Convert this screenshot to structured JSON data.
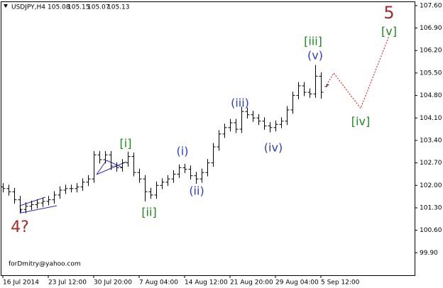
{
  "chart_data": {
    "type": "ohlc",
    "symbol": "USDJPY,H4",
    "quote": [
      105.08,
      105.15,
      105.07,
      105.13
    ],
    "watermark": "forDmitry@yahoo.com",
    "color": "#000000",
    "open": [
      101.95,
      101.9,
      101.8,
      101.55,
      101.25,
      101.35,
      101.4,
      101.45,
      101.5,
      101.55,
      101.7,
      101.85,
      101.9,
      101.9,
      101.95,
      102.1,
      102.2,
      102.95,
      102.8,
      102.95,
      102.6,
      102.55,
      102.7,
      102.9,
      102.4,
      102.2,
      101.8,
      101.7,
      102.0,
      102.1,
      102.2,
      102.35,
      102.55,
      102.5,
      102.3,
      102.2,
      102.4,
      102.7,
      103.2,
      103.6,
      103.8,
      103.95,
      103.75,
      104.3,
      104.2,
      104.1,
      104.0,
      103.85,
      103.8,
      103.9,
      104.0,
      104.35,
      104.8,
      105.1,
      104.9,
      104.85,
      105.4,
      105.08
    ],
    "high": [
      102.07,
      102.02,
      101.92,
      101.67,
      101.47,
      101.52,
      101.57,
      101.62,
      101.67,
      101.82,
      101.97,
      102.02,
      102.02,
      102.07,
      102.22,
      102.32,
      103.07,
      103.07,
      103.07,
      103.07,
      102.72,
      102.82,
      103.05,
      103.02,
      102.52,
      102.32,
      101.92,
      102.12,
      102.22,
      102.32,
      102.47,
      102.65,
      102.67,
      102.62,
      102.42,
      102.52,
      102.82,
      103.32,
      103.72,
      103.92,
      104.07,
      104.07,
      104.45,
      104.42,
      104.32,
      104.22,
      104.12,
      103.97,
      104.02,
      104.12,
      104.47,
      104.92,
      105.22,
      105.22,
      105.02,
      105.75,
      105.52,
      105.15
    ],
    "low": [
      101.78,
      101.68,
      101.43,
      101.12,
      101.13,
      101.23,
      101.28,
      101.33,
      101.38,
      101.43,
      101.58,
      101.73,
      101.78,
      101.78,
      101.83,
      101.98,
      102.08,
      102.68,
      102.68,
      102.48,
      102.43,
      102.43,
      102.58,
      102.28,
      102.08,
      101.5,
      101.58,
      101.58,
      101.88,
      101.98,
      102.08,
      102.23,
      102.38,
      102.18,
      102.05,
      102.08,
      102.28,
      102.58,
      103.08,
      103.48,
      103.68,
      103.63,
      103.63,
      104.08,
      103.98,
      103.88,
      103.73,
      103.65,
      103.68,
      103.78,
      103.88,
      104.23,
      104.68,
      104.78,
      104.73,
      104.73,
      104.7,
      105.07
    ],
    "close": [
      101.9,
      101.8,
      101.55,
      101.25,
      101.35,
      101.4,
      101.45,
      101.5,
      101.55,
      101.7,
      101.85,
      101.9,
      101.9,
      101.95,
      102.1,
      102.2,
      102.95,
      102.8,
      102.95,
      102.6,
      102.55,
      102.7,
      102.9,
      102.4,
      102.2,
      101.8,
      101.7,
      102.0,
      102.1,
      102.2,
      102.35,
      102.55,
      102.5,
      102.3,
      102.2,
      102.4,
      102.7,
      103.2,
      103.6,
      103.8,
      103.95,
      103.75,
      104.3,
      104.2,
      104.1,
      104.0,
      103.85,
      103.8,
      103.9,
      104.0,
      104.35,
      104.8,
      105.1,
      104.9,
      104.85,
      105.4,
      104.9,
      105.13
    ],
    "projection": {
      "color": "#ff0000",
      "x": [
        57,
        58.25,
        63,
        68
      ],
      "values": [
        105.13,
        105.5,
        104.4,
        106.65
      ]
    },
    "xlim": [
      -0.5,
      72.5
    ],
    "xticks": [
      {
        "value": 0,
        "label": "16 Jul 2014"
      },
      {
        "value": 8,
        "label": "23 Jul 12:00"
      },
      {
        "value": 16,
        "label": "30 Jul 20:00"
      },
      {
        "value": 24,
        "label": "7 Aug 04:00"
      },
      {
        "value": 32,
        "label": "14 Aug 12:00"
      },
      {
        "value": 40,
        "label": "21 Aug 20:00"
      },
      {
        "value": 48,
        "label": "29 Aug 04:00"
      },
      {
        "value": 56,
        "label": "5 Sep 12:00"
      }
    ],
    "ylim": [
      99.2,
      107.73
    ],
    "yticks": [
      {
        "value": 107.6,
        "label": "107.60"
      },
      {
        "value": 106.9,
        "label": "106.90"
      },
      {
        "value": 106.2,
        "label": "106.20"
      },
      {
        "value": 105.5,
        "label": "105.50"
      },
      {
        "value": 104.8,
        "label": "104.80"
      },
      {
        "value": 104.1,
        "label": "104.10"
      },
      {
        "value": 103.4,
        "label": "103.40"
      },
      {
        "value": 102.7,
        "label": "102.70"
      },
      {
        "value": 102.0,
        "label": "102.00"
      },
      {
        "value": 101.3,
        "label": "101.30"
      },
      {
        "value": 100.6,
        "label": "100.60"
      },
      {
        "value": 99.9,
        "label": "99.90"
      }
    ],
    "annotations": [
      {
        "text": "4?",
        "color": "#a52a2a"
      },
      {
        "text": "[i]",
        "color": "#1a8a1a"
      },
      {
        "text": "[ii]",
        "color": "#1a8a1a"
      },
      {
        "text": "(i)",
        "color": "#2a3bd4"
      },
      {
        "text": "(ii)",
        "color": "#2a3bd4"
      },
      {
        "text": "(iii)",
        "color": "#2a3bd4"
      },
      {
        "text": "(iv)",
        "color": "#2a3bd4"
      },
      {
        "text": "[iii]",
        "color": "#1a8a1a"
      },
      {
        "text": "(v)",
        "color": "#2a3bd4"
      },
      {
        "text": "[iv]",
        "color": "#1a8a1a"
      },
      {
        "text": "[v]",
        "color": "#1a8a1a"
      },
      {
        "text": "5",
        "color": "#a52a2a"
      }
    ]
  }
}
